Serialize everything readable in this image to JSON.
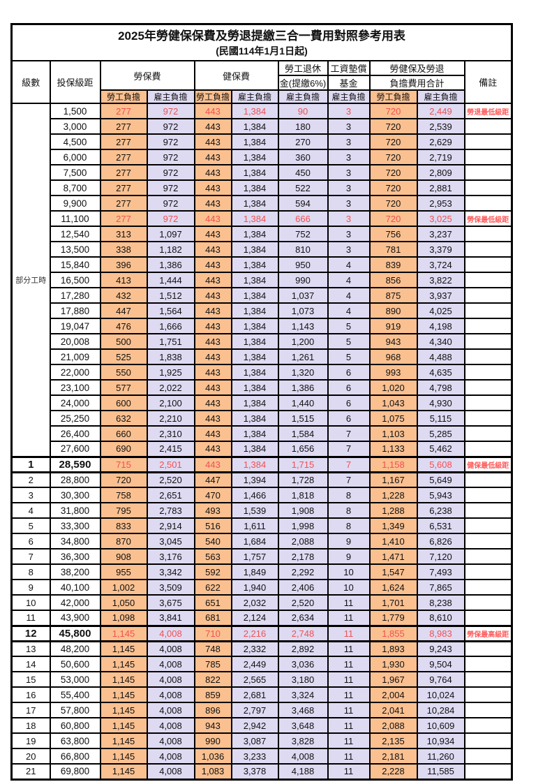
{
  "title": "2025年勞健保保費及勞退提繳三合一費用對照參考用表",
  "subtitle": "(民國114年1月1日起)",
  "header": {
    "level": "級數",
    "bracket": "投保級距",
    "labor_insurance": "勞保費",
    "health_insurance": "健保費",
    "pension_line1": "勞工退休",
    "pension_line2": "金(提繳6%)",
    "wage_fund_line1": "工資墊償",
    "wage_fund_line2": "基金",
    "total_line1": "勞健保及勞退",
    "total_line2": "負擔費用合計",
    "remark": "備註",
    "employee_share": "勞工負擔",
    "employer_share": "雇主負擔"
  },
  "part_time_label": "部分工時",
  "colors": {
    "employee_bg": "#FAC090",
    "employer_bg": "#DEDAF2",
    "highlight_text": "#F25050",
    "remark_text": "#FF5A5A"
  },
  "rows": [
    {
      "level": "",
      "bracket": "1,500",
      "labor_emp": "277",
      "labor_er": "972",
      "health_emp": "443",
      "health_er": "1,384",
      "pension_er": "90",
      "wage_er": "3",
      "total_emp": "720",
      "total_er": "2,449",
      "remark": "勞退最低級距",
      "red": true,
      "bold": false
    },
    {
      "level": "",
      "bracket": "3,000",
      "labor_emp": "277",
      "labor_er": "972",
      "health_emp": "443",
      "health_er": "1,384",
      "pension_er": "180",
      "wage_er": "3",
      "total_emp": "720",
      "total_er": "2,539",
      "remark": "",
      "red": false,
      "bold": false
    },
    {
      "level": "",
      "bracket": "4,500",
      "labor_emp": "277",
      "labor_er": "972",
      "health_emp": "443",
      "health_er": "1,384",
      "pension_er": "270",
      "wage_er": "3",
      "total_emp": "720",
      "total_er": "2,629",
      "remark": "",
      "red": false,
      "bold": false
    },
    {
      "level": "",
      "bracket": "6,000",
      "labor_emp": "277",
      "labor_er": "972",
      "health_emp": "443",
      "health_er": "1,384",
      "pension_er": "360",
      "wage_er": "3",
      "total_emp": "720",
      "total_er": "2,719",
      "remark": "",
      "red": false,
      "bold": false
    },
    {
      "level": "",
      "bracket": "7,500",
      "labor_emp": "277",
      "labor_er": "972",
      "health_emp": "443",
      "health_er": "1,384",
      "pension_er": "450",
      "wage_er": "3",
      "total_emp": "720",
      "total_er": "2,809",
      "remark": "",
      "red": false,
      "bold": false
    },
    {
      "level": "",
      "bracket": "8,700",
      "labor_emp": "277",
      "labor_er": "972",
      "health_emp": "443",
      "health_er": "1,384",
      "pension_er": "522",
      "wage_er": "3",
      "total_emp": "720",
      "total_er": "2,881",
      "remark": "",
      "red": false,
      "bold": false
    },
    {
      "level": "",
      "bracket": "9,900",
      "labor_emp": "277",
      "labor_er": "972",
      "health_emp": "443",
      "health_er": "1,384",
      "pension_er": "594",
      "wage_er": "3",
      "total_emp": "720",
      "total_er": "2,953",
      "remark": "",
      "red": false,
      "bold": false
    },
    {
      "level": "",
      "bracket": "11,100",
      "labor_emp": "277",
      "labor_er": "972",
      "health_emp": "443",
      "health_er": "1,384",
      "pension_er": "666",
      "wage_er": "3",
      "total_emp": "720",
      "total_er": "3,025",
      "remark": "勞保最低級距",
      "red": true,
      "bold": false
    },
    {
      "level": "",
      "bracket": "12,540",
      "labor_emp": "313",
      "labor_er": "1,097",
      "health_emp": "443",
      "health_er": "1,384",
      "pension_er": "752",
      "wage_er": "3",
      "total_emp": "756",
      "total_er": "3,237",
      "remark": "",
      "red": false,
      "bold": false
    },
    {
      "level": "",
      "bracket": "13,500",
      "labor_emp": "338",
      "labor_er": "1,182",
      "health_emp": "443",
      "health_er": "1,384",
      "pension_er": "810",
      "wage_er": "3",
      "total_emp": "781",
      "total_er": "3,379",
      "remark": "",
      "red": false,
      "bold": false
    },
    {
      "level": "",
      "bracket": "15,840",
      "labor_emp": "396",
      "labor_er": "1,386",
      "health_emp": "443",
      "health_er": "1,384",
      "pension_er": "950",
      "wage_er": "4",
      "total_emp": "839",
      "total_er": "3,724",
      "remark": "",
      "red": false,
      "bold": false
    },
    {
      "level": "",
      "bracket": "16,500",
      "labor_emp": "413",
      "labor_er": "1,444",
      "health_emp": "443",
      "health_er": "1,384",
      "pension_er": "990",
      "wage_er": "4",
      "total_emp": "856",
      "total_er": "3,822",
      "remark": "",
      "red": false,
      "bold": false
    },
    {
      "level": "",
      "bracket": "17,280",
      "labor_emp": "432",
      "labor_er": "1,512",
      "health_emp": "443",
      "health_er": "1,384",
      "pension_er": "1,037",
      "wage_er": "4",
      "total_emp": "875",
      "total_er": "3,937",
      "remark": "",
      "red": false,
      "bold": false
    },
    {
      "level": "",
      "bracket": "17,880",
      "labor_emp": "447",
      "labor_er": "1,564",
      "health_emp": "443",
      "health_er": "1,384",
      "pension_er": "1,073",
      "wage_er": "4",
      "total_emp": "890",
      "total_er": "4,025",
      "remark": "",
      "red": false,
      "bold": false
    },
    {
      "level": "",
      "bracket": "19,047",
      "labor_emp": "476",
      "labor_er": "1,666",
      "health_emp": "443",
      "health_er": "1,384",
      "pension_er": "1,143",
      "wage_er": "5",
      "total_emp": "919",
      "total_er": "4,198",
      "remark": "",
      "red": false,
      "bold": false
    },
    {
      "level": "",
      "bracket": "20,008",
      "labor_emp": "500",
      "labor_er": "1,751",
      "health_emp": "443",
      "health_er": "1,384",
      "pension_er": "1,200",
      "wage_er": "5",
      "total_emp": "943",
      "total_er": "4,340",
      "remark": "",
      "red": false,
      "bold": false
    },
    {
      "level": "",
      "bracket": "21,009",
      "labor_emp": "525",
      "labor_er": "1,838",
      "health_emp": "443",
      "health_er": "1,384",
      "pension_er": "1,261",
      "wage_er": "5",
      "total_emp": "968",
      "total_er": "4,488",
      "remark": "",
      "red": false,
      "bold": false
    },
    {
      "level": "",
      "bracket": "22,000",
      "labor_emp": "550",
      "labor_er": "1,925",
      "health_emp": "443",
      "health_er": "1,384",
      "pension_er": "1,320",
      "wage_er": "6",
      "total_emp": "993",
      "total_er": "4,635",
      "remark": "",
      "red": false,
      "bold": false
    },
    {
      "level": "",
      "bracket": "23,100",
      "labor_emp": "577",
      "labor_er": "2,022",
      "health_emp": "443",
      "health_er": "1,384",
      "pension_er": "1,386",
      "wage_er": "6",
      "total_emp": "1,020",
      "total_er": "4,798",
      "remark": "",
      "red": false,
      "bold": false
    },
    {
      "level": "",
      "bracket": "24,000",
      "labor_emp": "600",
      "labor_er": "2,100",
      "health_emp": "443",
      "health_er": "1,384",
      "pension_er": "1,440",
      "wage_er": "6",
      "total_emp": "1,043",
      "total_er": "4,930",
      "remark": "",
      "red": false,
      "bold": false
    },
    {
      "level": "",
      "bracket": "25,250",
      "labor_emp": "632",
      "labor_er": "2,210",
      "health_emp": "443",
      "health_er": "1,384",
      "pension_er": "1,515",
      "wage_er": "6",
      "total_emp": "1,075",
      "total_er": "5,115",
      "remark": "",
      "red": false,
      "bold": false
    },
    {
      "level": "",
      "bracket": "26,400",
      "labor_emp": "660",
      "labor_er": "2,310",
      "health_emp": "443",
      "health_er": "1,384",
      "pension_er": "1,584",
      "wage_er": "7",
      "total_emp": "1,103",
      "total_er": "5,285",
      "remark": "",
      "red": false,
      "bold": false
    },
    {
      "level": "",
      "bracket": "27,600",
      "labor_emp": "690",
      "labor_er": "2,415",
      "health_emp": "443",
      "health_er": "1,384",
      "pension_er": "1,656",
      "wage_er": "7",
      "total_emp": "1,133",
      "total_er": "5,462",
      "remark": "",
      "red": false,
      "bold": false
    },
    {
      "level": "1",
      "bracket": "28,590",
      "labor_emp": "715",
      "labor_er": "2,501",
      "health_emp": "443",
      "health_er": "1,384",
      "pension_er": "1,715",
      "wage_er": "7",
      "total_emp": "1,158",
      "total_er": "5,608",
      "remark": "健保最低級距",
      "red": true,
      "bold": true
    },
    {
      "level": "2",
      "bracket": "28,800",
      "labor_emp": "720",
      "labor_er": "2,520",
      "health_emp": "447",
      "health_er": "1,394",
      "pension_er": "1,728",
      "wage_er": "7",
      "total_emp": "1,167",
      "total_er": "5,649",
      "remark": "",
      "red": false,
      "bold": false
    },
    {
      "level": "3",
      "bracket": "30,300",
      "labor_emp": "758",
      "labor_er": "2,651",
      "health_emp": "470",
      "health_er": "1,466",
      "pension_er": "1,818",
      "wage_er": "8",
      "total_emp": "1,228",
      "total_er": "5,943",
      "remark": "",
      "red": false,
      "bold": false
    },
    {
      "level": "4",
      "bracket": "31,800",
      "labor_emp": "795",
      "labor_er": "2,783",
      "health_emp": "493",
      "health_er": "1,539",
      "pension_er": "1,908",
      "wage_er": "8",
      "total_emp": "1,288",
      "total_er": "6,238",
      "remark": "",
      "red": false,
      "bold": false
    },
    {
      "level": "5",
      "bracket": "33,300",
      "labor_emp": "833",
      "labor_er": "2,914",
      "health_emp": "516",
      "health_er": "1,611",
      "pension_er": "1,998",
      "wage_er": "8",
      "total_emp": "1,349",
      "total_er": "6,531",
      "remark": "",
      "red": false,
      "bold": false
    },
    {
      "level": "6",
      "bracket": "34,800",
      "labor_emp": "870",
      "labor_er": "3,045",
      "health_emp": "540",
      "health_er": "1,684",
      "pension_er": "2,088",
      "wage_er": "9",
      "total_emp": "1,410",
      "total_er": "6,826",
      "remark": "",
      "red": false,
      "bold": false
    },
    {
      "level": "7",
      "bracket": "36,300",
      "labor_emp": "908",
      "labor_er": "3,176",
      "health_emp": "563",
      "health_er": "1,757",
      "pension_er": "2,178",
      "wage_er": "9",
      "total_emp": "1,471",
      "total_er": "7,120",
      "remark": "",
      "red": false,
      "bold": false
    },
    {
      "level": "8",
      "bracket": "38,200",
      "labor_emp": "955",
      "labor_er": "3,342",
      "health_emp": "592",
      "health_er": "1,849",
      "pension_er": "2,292",
      "wage_er": "10",
      "total_emp": "1,547",
      "total_er": "7,493",
      "remark": "",
      "red": false,
      "bold": false
    },
    {
      "level": "9",
      "bracket": "40,100",
      "labor_emp": "1,002",
      "labor_er": "3,509",
      "health_emp": "622",
      "health_er": "1,940",
      "pension_er": "2,406",
      "wage_er": "10",
      "total_emp": "1,624",
      "total_er": "7,865",
      "remark": "",
      "red": false,
      "bold": false
    },
    {
      "level": "10",
      "bracket": "42,000",
      "labor_emp": "1,050",
      "labor_er": "3,675",
      "health_emp": "651",
      "health_er": "2,032",
      "pension_er": "2,520",
      "wage_er": "11",
      "total_emp": "1,701",
      "total_er": "8,238",
      "remark": "",
      "red": false,
      "bold": false
    },
    {
      "level": "11",
      "bracket": "43,900",
      "labor_emp": "1,098",
      "labor_er": "3,841",
      "health_emp": "681",
      "health_er": "2,124",
      "pension_er": "2,634",
      "wage_er": "11",
      "total_emp": "1,779",
      "total_er": "8,610",
      "remark": "",
      "red": false,
      "bold": false
    },
    {
      "level": "12",
      "bracket": "45,800",
      "labor_emp": "1,145",
      "labor_er": "4,008",
      "health_emp": "710",
      "health_er": "2,216",
      "pension_er": "2,748",
      "wage_er": "11",
      "total_emp": "1,855",
      "total_er": "8,983",
      "remark": "勞保最高級距",
      "red": true,
      "bold": true
    },
    {
      "level": "13",
      "bracket": "48,200",
      "labor_emp": "1,145",
      "labor_er": "4,008",
      "health_emp": "748",
      "health_er": "2,332",
      "pension_er": "2,892",
      "wage_er": "11",
      "total_emp": "1,893",
      "total_er": "9,243",
      "remark": "",
      "red": false,
      "bold": false
    },
    {
      "level": "14",
      "bracket": "50,600",
      "labor_emp": "1,145",
      "labor_er": "4,008",
      "health_emp": "785",
      "health_er": "2,449",
      "pension_er": "3,036",
      "wage_er": "11",
      "total_emp": "1,930",
      "total_er": "9,504",
      "remark": "",
      "red": false,
      "bold": false
    },
    {
      "level": "15",
      "bracket": "53,000",
      "labor_emp": "1,145",
      "labor_er": "4,008",
      "health_emp": "822",
      "health_er": "2,565",
      "pension_er": "3,180",
      "wage_er": "11",
      "total_emp": "1,967",
      "total_er": "9,764",
      "remark": "",
      "red": false,
      "bold": false
    },
    {
      "level": "16",
      "bracket": "55,400",
      "labor_emp": "1,145",
      "labor_er": "4,008",
      "health_emp": "859",
      "health_er": "2,681",
      "pension_er": "3,324",
      "wage_er": "11",
      "total_emp": "2,004",
      "total_er": "10,024",
      "remark": "",
      "red": false,
      "bold": false
    },
    {
      "level": "17",
      "bracket": "57,800",
      "labor_emp": "1,145",
      "labor_er": "4,008",
      "health_emp": "896",
      "health_er": "2,797",
      "pension_er": "3,468",
      "wage_er": "11",
      "total_emp": "2,041",
      "total_er": "10,284",
      "remark": "",
      "red": false,
      "bold": false
    },
    {
      "level": "18",
      "bracket": "60,800",
      "labor_emp": "1,145",
      "labor_er": "4,008",
      "health_emp": "943",
      "health_er": "2,942",
      "pension_er": "3,648",
      "wage_er": "11",
      "total_emp": "2,088",
      "total_er": "10,609",
      "remark": "",
      "red": false,
      "bold": false
    },
    {
      "level": "19",
      "bracket": "63,800",
      "labor_emp": "1,145",
      "labor_er": "4,008",
      "health_emp": "990",
      "health_er": "3,087",
      "pension_er": "3,828",
      "wage_er": "11",
      "total_emp": "2,135",
      "total_er": "10,934",
      "remark": "",
      "red": false,
      "bold": false
    },
    {
      "level": "20",
      "bracket": "66,800",
      "labor_emp": "1,145",
      "labor_er": "4,008",
      "health_emp": "1,036",
      "health_er": "3,233",
      "pension_er": "4,008",
      "wage_er": "11",
      "total_emp": "2,181",
      "total_er": "11,260",
      "remark": "",
      "red": false,
      "bold": false
    },
    {
      "level": "21",
      "bracket": "69,800",
      "labor_emp": "1,145",
      "labor_er": "4,008",
      "health_emp": "1,083",
      "health_er": "3,378",
      "pension_er": "4,188",
      "wage_er": "11",
      "total_emp": "2,228",
      "total_er": "11,585",
      "remark": "",
      "red": false,
      "bold": false
    }
  ]
}
